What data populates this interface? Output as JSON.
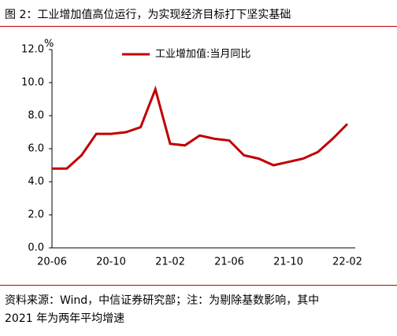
{
  "header": {
    "title": "图 2：工业增加值高位运行，为实现经济目标打下坚实基础"
  },
  "chart_data": {
    "type": "line",
    "unit": "%",
    "categories": [
      "20-06",
      null,
      null,
      null,
      "20-10",
      null,
      null,
      null,
      "21-02",
      null,
      null,
      null,
      "21-06",
      null,
      null,
      null,
      "21-10",
      null,
      null,
      null,
      "22-02"
    ],
    "series": [
      {
        "name": "工业增加值:当月同比",
        "color": "#c00000",
        "values": [
          4.8,
          4.8,
          5.6,
          6.9,
          6.9,
          7.0,
          7.3,
          9.6,
          6.3,
          6.2,
          6.8,
          6.6,
          6.5,
          5.6,
          5.4,
          5.0,
          5.2,
          5.4,
          5.8,
          6.6,
          7.5
        ]
      }
    ],
    "ylim": [
      0,
      12
    ],
    "yticks": [
      {
        "value": 0,
        "label": "0.0"
      },
      {
        "value": 2,
        "label": "2.0"
      },
      {
        "value": 4,
        "label": "4.0"
      },
      {
        "value": 6,
        "label": "6.0"
      },
      {
        "value": 8,
        "label": "8.0"
      },
      {
        "value": 10,
        "label": "10.0"
      },
      {
        "value": 12,
        "label": "12.0"
      }
    ]
  },
  "footer": {
    "source_lines": [
      "资料来源：Wind，中信证券研究部；注：为剔除基数影响，其中",
      "2021 年为两年平均增速"
    ]
  }
}
